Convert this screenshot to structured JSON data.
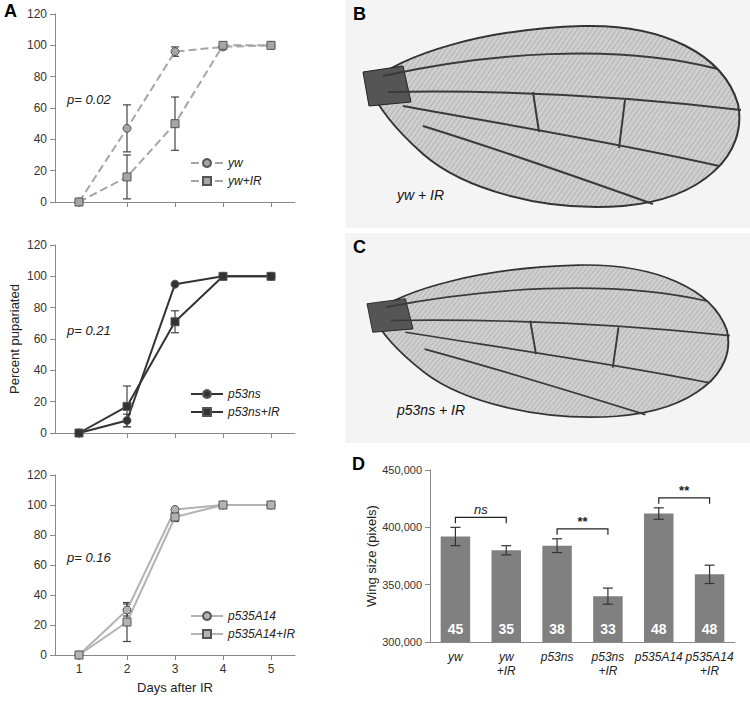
{
  "chart_data": [
    {
      "type": "line",
      "panel": "A",
      "annotations": [
        "p= 0.02"
      ],
      "x": [
        1,
        2,
        3,
        4,
        5
      ],
      "xlim": [
        0.5,
        5.5
      ],
      "xticks": [
        1,
        2,
        3,
        4,
        5
      ],
      "ylim": [
        0,
        120
      ],
      "yticks": [
        0,
        20,
        40,
        60,
        80,
        100,
        120
      ],
      "tick_labels": "y",
      "legend": "lower right",
      "series": [
        {
          "name": "yw",
          "color": "#a6a6a6",
          "marker": "circle",
          "line_style": "dashed",
          "values": [
            0,
            47,
            96,
            99,
            100
          ],
          "errors": [
            null,
            15,
            3,
            null,
            null
          ]
        },
        {
          "name": "yw+IR",
          "color": "#a6a6a6",
          "marker": "square",
          "line_style": "dashed",
          "values": [
            0,
            16,
            50,
            100,
            100
          ],
          "errors": [
            null,
            14,
            17,
            null,
            null
          ]
        }
      ]
    },
    {
      "type": "line",
      "ylabel": "Percent pupariated",
      "annotations": [
        "p= 0.21"
      ],
      "x": [
        1,
        2,
        3,
        4,
        5
      ],
      "xlim": [
        0.5,
        5.5
      ],
      "xticks": [
        1,
        2,
        3,
        4,
        5
      ],
      "ylim": [
        0,
        120
      ],
      "yticks": [
        0,
        20,
        40,
        60,
        80,
        100,
        120
      ],
      "tick_labels": "y",
      "legend": "lower right",
      "series": [
        {
          "name": "p53ns",
          "color": "#333333",
          "marker": "circle",
          "line_style": "solid",
          "values": [
            0,
            8,
            95,
            100,
            100
          ],
          "errors": [
            null,
            4,
            null,
            null,
            null
          ]
        },
        {
          "name": "p53ns+IR",
          "color": "#333333",
          "marker": "square",
          "line_style": "solid",
          "values": [
            0,
            17,
            71,
            100,
            100
          ],
          "errors": [
            null,
            13,
            7,
            null,
            null
          ]
        }
      ]
    },
    {
      "type": "line",
      "xlabel": "Days after IR",
      "annotations": [
        "p= 0.16"
      ],
      "x": [
        1,
        2,
        3,
        4,
        5
      ],
      "xlim": [
        0.5,
        5.5
      ],
      "xticks": [
        1,
        2,
        3,
        4,
        5
      ],
      "ylim": [
        0,
        120
      ],
      "yticks": [
        0,
        20,
        40,
        60,
        80,
        100,
        120
      ],
      "legend": "lower right",
      "series": [
        {
          "name": "p535A14",
          "color": "#b3b3b3",
          "marker": "circle",
          "line_style": "solid",
          "values": [
            0,
            30,
            97,
            100,
            100
          ],
          "errors": [
            null,
            4,
            null,
            null,
            null
          ]
        },
        {
          "name": "p535A14+IR",
          "color": "#b3b3b3",
          "marker": "square",
          "line_style": "solid",
          "values": [
            0,
            22,
            92,
            100,
            100
          ],
          "errors": [
            null,
            13,
            3,
            null,
            null
          ]
        }
      ]
    },
    {
      "type": "bar",
      "panel": "D",
      "ylabel": "Wing size (pixels)",
      "categories": [
        "yw",
        "yw\n+IR",
        "p53ns",
        "p53ns\n+IR",
        "p535A14",
        "p535A14\n+IR"
      ],
      "values": [
        392000,
        380000,
        384000,
        340000,
        412000,
        359000
      ],
      "errors": [
        8000,
        4000,
        6000,
        7000,
        5000,
        8000
      ],
      "n": [
        45,
        35,
        38,
        33,
        48,
        48
      ],
      "color": "#808080",
      "ylim": [
        300000,
        450000
      ],
      "yticks": [
        300000,
        350000,
        400000,
        450000
      ],
      "annotations": [
        {
          "text": "ns",
          "between": [
            "yw",
            "yw\n+IR"
          ]
        },
        {
          "text": "**",
          "between": [
            "p53ns",
            "p53ns\n+IR"
          ]
        },
        {
          "text": "**",
          "between": [
            "p535A14",
            "p535A14\n+IR"
          ]
        }
      ]
    }
  ],
  "images": [
    {
      "panel": "B",
      "label": "yw + IR"
    },
    {
      "panel": "C",
      "label": "p53ns + IR"
    }
  ]
}
